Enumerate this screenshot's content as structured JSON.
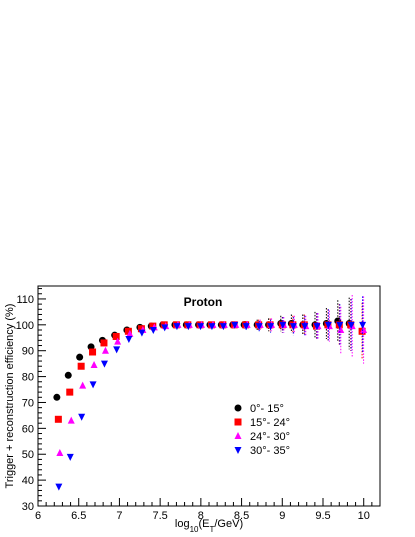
{
  "chart_data": {
    "type": "scatter",
    "title": "Proton",
    "xlabel": "log10(ET/GeV)",
    "ylabel": "Trigger + reconstruction efficiency (%)",
    "xlim": [
      6,
      10.2
    ],
    "ylim": [
      30,
      115
    ],
    "x_ticks": [
      "6",
      "6.5",
      "7",
      "7.5",
      "8",
      "8.5",
      "9",
      "9.5",
      "10"
    ],
    "y_ticks": [
      "30",
      "40",
      "50",
      "60",
      "70",
      "80",
      "90",
      "100",
      "110"
    ],
    "legend_position": "lower-right",
    "grid": false,
    "series": [
      {
        "name": "0°- 15°",
        "marker": "circle",
        "color": "#000000",
        "x": [
          6.25,
          6.39,
          6.53,
          6.67,
          6.81,
          6.96,
          7.11,
          7.27,
          7.41,
          7.55,
          7.7,
          7.84,
          7.99,
          8.13,
          8.27,
          8.41,
          8.55,
          8.71,
          8.85,
          9.0,
          9.13,
          9.27,
          9.42,
          9.56,
          9.7,
          9.84
        ],
        "y": [
          72,
          80.5,
          87.5,
          91.5,
          94,
          96,
          98,
          99,
          99.5,
          100,
          100,
          100,
          100,
          100,
          100,
          100,
          100,
          100,
          100,
          100.5,
          100.5,
          100,
          100,
          100.5,
          101.5,
          100.5
        ],
        "err": [
          0,
          0,
          0,
          0,
          0,
          0,
          0,
          0,
          0,
          0,
          0,
          0,
          0.5,
          0.8,
          1.0,
          1.2,
          1.5,
          2.0,
          2.5,
          3,
          3.5,
          4,
          5,
          6,
          8,
          10
        ]
      },
      {
        "name": "15°- 24°",
        "marker": "square",
        "color": "#ff0000",
        "x": [
          6.25,
          6.39,
          6.53,
          6.67,
          6.81,
          6.96,
          7.11,
          7.27,
          7.41,
          7.55,
          7.7,
          7.84,
          7.99,
          8.13,
          8.27,
          8.41,
          8.55,
          8.71,
          8.85,
          9.0,
          9.13,
          9.27,
          9.42,
          9.56,
          9.7,
          9.84,
          9.98
        ],
        "y": [
          63.5,
          74,
          84,
          89.5,
          93,
          95.5,
          97.5,
          98.5,
          99.5,
          100,
          100,
          100,
          100,
          100,
          100,
          100,
          100,
          100,
          100,
          100,
          100,
          100,
          99.5,
          100,
          100,
          100,
          97.5
        ],
        "err": [
          0,
          0,
          0,
          0,
          0,
          0,
          0,
          0,
          0,
          0,
          0,
          0,
          0.5,
          0.8,
          1.0,
          1.2,
          1.5,
          2.0,
          2.5,
          3,
          3.5,
          4,
          5,
          6,
          8,
          10,
          11
        ]
      },
      {
        "name": "24°- 30°",
        "marker": "triangle-up",
        "color": "#ff00ff",
        "x": [
          6.25,
          6.39,
          6.53,
          6.67,
          6.81,
          6.96,
          7.11,
          7.27,
          7.41,
          7.55,
          7.7,
          7.84,
          7.99,
          8.13,
          8.27,
          8.41,
          8.55,
          8.71,
          8.85,
          9.0,
          9.13,
          9.27,
          9.42,
          9.56,
          9.7,
          9.84,
          9.98
        ],
        "y": [
          50.5,
          63,
          76.5,
          84.5,
          90,
          93.5,
          96.5,
          98,
          99,
          99.5,
          100,
          100,
          100,
          100,
          100,
          100,
          100,
          100,
          100,
          100,
          100,
          99.5,
          99.5,
          99.5,
          98,
          99.5,
          98
        ],
        "err": [
          0,
          0,
          0,
          0,
          0,
          0,
          0,
          0,
          0,
          0,
          0,
          0,
          0.5,
          0.8,
          1.0,
          1.2,
          1.5,
          2.0,
          2.5,
          3,
          3.5,
          4,
          5,
          6,
          9,
          12,
          13
        ]
      },
      {
        "name": "30°- 35°",
        "marker": "triangle-down",
        "color": "#0000ff",
        "x": [
          6.25,
          6.39,
          6.53,
          6.67,
          6.81,
          6.96,
          7.11,
          7.27,
          7.41,
          7.55,
          7.7,
          7.84,
          7.99,
          8.13,
          8.27,
          8.41,
          8.55,
          8.71,
          8.85,
          9.0,
          9.13,
          9.27,
          9.42,
          9.56,
          9.7,
          9.84,
          9.98
        ],
        "y": [
          37.5,
          49,
          64.5,
          77,
          85,
          90.5,
          94.5,
          97,
          98,
          99,
          99.5,
          99.5,
          99.5,
          99.5,
          99.5,
          100,
          99.5,
          99.5,
          99.5,
          100,
          99.5,
          99.5,
          99.5,
          100,
          100,
          100,
          100
        ],
        "err": [
          0,
          0,
          0,
          0,
          0,
          0,
          0,
          0,
          0,
          0,
          0,
          0,
          0.5,
          0.8,
          1.0,
          1.2,
          1.5,
          2.0,
          2.5,
          3,
          3.5,
          4,
          5,
          6,
          8,
          10,
          11
        ]
      }
    ]
  }
}
